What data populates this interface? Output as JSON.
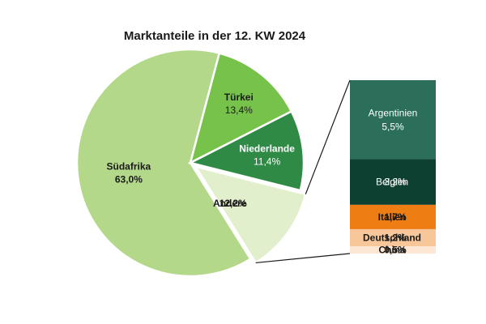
{
  "chart_data": {
    "type": "pie",
    "title": "Marktanteile in der 12. KW 2024",
    "slices": [
      {
        "name": "Südafrika",
        "value": 63.0,
        "label": "63,0%",
        "color": "#b3d88a"
      },
      {
        "name": "Türkei",
        "value": 13.4,
        "label": "13,4%",
        "color": "#77c24a"
      },
      {
        "name": "Niederlande",
        "value": 11.4,
        "label": "11,4%",
        "color": "#2f8a46"
      },
      {
        "name": "Andere",
        "value": 12.2,
        "label": "12,2%",
        "color": "#e2efcc"
      }
    ],
    "breakdown": {
      "of": "Andere",
      "items": [
        {
          "name": "Argentinien",
          "value": 5.5,
          "label": "5,5%",
          "color": "#2b6e5a"
        },
        {
          "name": "Belgien",
          "value": 3.2,
          "label": "3,2%",
          "color": "#0d4030"
        },
        {
          "name": "Italien",
          "value": 1.7,
          "label": "1,7%",
          "color": "#ee7d14"
        },
        {
          "name": "Deutschland",
          "value": 1.2,
          "label": "1,2%",
          "color": "#f7c699"
        },
        {
          "name": "China",
          "value": 0.5,
          "label": "0,5%",
          "color": "#fde7d4"
        }
      ]
    }
  }
}
